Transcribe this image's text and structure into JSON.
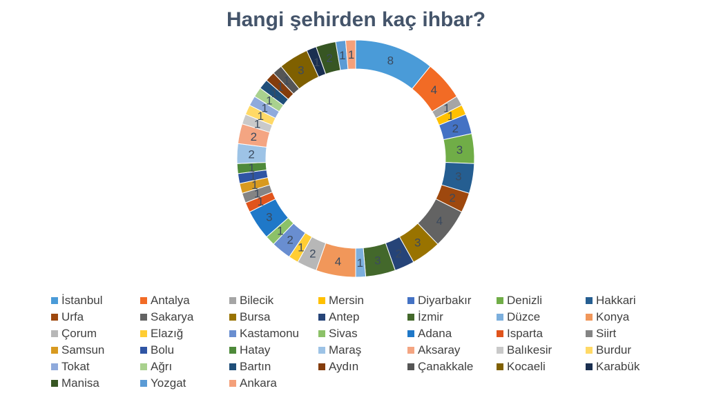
{
  "chart_data": {
    "type": "pie",
    "subtype": "doughnut",
    "title": "Hangi şehirden kaç ihbar?",
    "legend_position": "bottom",
    "data_labels": true,
    "categories": [
      "İstanbul",
      "Antalya",
      "Bilecik",
      "Mersin",
      "Diyarbakır",
      "Denizli",
      "Hakkari",
      "Urfa",
      "Sakarya",
      "Bursa",
      "Antep",
      "İzmir",
      "Düzce",
      "Konya",
      "Çorum",
      "Elazığ",
      "Kastamonu",
      "Sivas",
      "Adana",
      "Isparta",
      "Siirt",
      "Samsun",
      "Bolu",
      "Hatay",
      "Maraş",
      "Aksaray",
      "Balıkesir",
      "Burdur",
      "Tokat",
      "Ağrı",
      "Bartın",
      "Aydın",
      "Çanakkale",
      "Kocaeli",
      "Karabük",
      "Manisa",
      "Yozgat",
      "Ankara"
    ],
    "values": [
      8,
      4,
      1,
      1,
      2,
      3,
      3,
      2,
      4,
      3,
      2,
      3,
      1,
      4,
      2,
      1,
      2,
      1,
      3,
      1,
      1,
      1,
      1,
      1,
      2,
      2,
      1,
      1,
      1,
      1,
      1,
      1,
      1,
      3,
      1,
      2,
      1,
      1
    ],
    "colors": [
      "#4A9BD8",
      "#F26B25",
      "#A5A5A5",
      "#FFC000",
      "#4472C4",
      "#70AD47",
      "#255E91",
      "#9E480E",
      "#636363",
      "#997300",
      "#264478",
      "#43682B",
      "#7CAFDD",
      "#F1975A",
      "#B7B7B7",
      "#FFCD33",
      "#698ED0",
      "#8CC168",
      "#1F78C8",
      "#E0541C",
      "#848484",
      "#D89A20",
      "#2F55A4",
      "#4E8A3A",
      "#9DC3E6",
      "#F4A582",
      "#C9C9C9",
      "#FFD966",
      "#8FAADC",
      "#A9D18E",
      "#1F4E79",
      "#843C0C",
      "#555555",
      "#7F6000",
      "#1A2F50",
      "#375623",
      "#5B9BD5",
      "#F4A07A"
    ]
  }
}
